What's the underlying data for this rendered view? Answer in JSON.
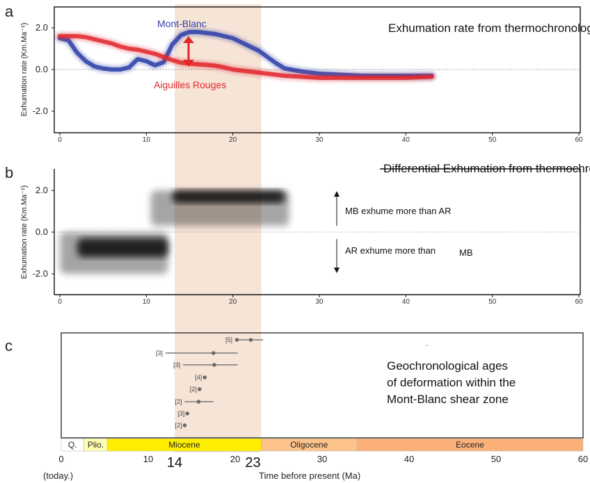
{
  "chart_data": [
    {
      "panel": "a",
      "type": "line",
      "title": "Exhumation rate from thermochronology",
      "ylabel": "Exhumation rate (Km.Ma⁻¹)",
      "ylim": [
        -3,
        3
      ],
      "xlim": [
        -0.5,
        60
      ],
      "yticks": [
        "2.0",
        "0.0",
        "-2.0"
      ],
      "xticks": [
        "0",
        "10",
        "20",
        "30",
        "40",
        "50",
        "60"
      ],
      "series": [
        {
          "name": "Mont-Blanc",
          "color": "#2f3fa8",
          "x": [
            0,
            1,
            2,
            3,
            4,
            5,
            6,
            7,
            8,
            9,
            10,
            11,
            12,
            13,
            14,
            15,
            16,
            17,
            18,
            19,
            20,
            21,
            22,
            23,
            24,
            25,
            26,
            28,
            30,
            35,
            40,
            43
          ],
          "y": [
            1.5,
            1.4,
            0.8,
            0.4,
            0.15,
            0.05,
            0.0,
            0.0,
            0.1,
            0.5,
            0.4,
            0.2,
            0.35,
            1.2,
            1.65,
            1.8,
            1.8,
            1.75,
            1.7,
            1.6,
            1.5,
            1.3,
            1.1,
            0.9,
            0.6,
            0.3,
            0.05,
            -0.1,
            -0.2,
            -0.3,
            -0.3,
            -0.3
          ]
        },
        {
          "name": "Aiguilles Rouges",
          "color": "#e0282e",
          "x": [
            0,
            2,
            3,
            4,
            5,
            6,
            7,
            8,
            9,
            10,
            11,
            12,
            13,
            14,
            15,
            16,
            17,
            18,
            19,
            20,
            22,
            24,
            26,
            28,
            30,
            35,
            40,
            43
          ],
          "y": [
            1.6,
            1.6,
            1.55,
            1.45,
            1.35,
            1.25,
            1.1,
            1.0,
            0.95,
            0.85,
            0.75,
            0.6,
            0.45,
            0.33,
            0.28,
            0.25,
            0.22,
            0.18,
            0.1,
            0.0,
            -0.1,
            -0.2,
            -0.3,
            -0.35,
            -0.4,
            -0.4,
            -0.4,
            -0.35
          ]
        }
      ]
    },
    {
      "panel": "b",
      "type": "heatmap",
      "title": "Differential Exhumation from thermochronology",
      "ylabel": "Exhumation rate (Km.Ma⁻¹)",
      "ylim": [
        -3,
        3
      ],
      "xlim": [
        -0.5,
        60
      ],
      "yticks": [
        "2.0",
        "0.0",
        "-2.0"
      ],
      "xticks": [
        "0",
        "10",
        "20",
        "30",
        "40",
        "50",
        "60"
      ],
      "bands": [
        {
          "x": [
            0,
            12.5
          ],
          "y": [
            -2.0,
            0.0
          ],
          "density": 0.35
        },
        {
          "x": [
            2.0,
            12.5
          ],
          "y": [
            -1.2,
            -0.3
          ],
          "density": 0.8
        },
        {
          "x": [
            10.5,
            26.5
          ],
          "y": [
            0.3,
            2.0
          ],
          "density": 0.35
        },
        {
          "x": [
            13.0,
            26.0
          ],
          "y": [
            1.4,
            2.0
          ],
          "density": 0.8
        }
      ],
      "annotations": [
        "MB exhume more than AR",
        "AR exhume more than",
        "MB"
      ]
    },
    {
      "panel": "c",
      "type": "scatter",
      "title": "Geochronological ages of deformation within the Mont-Blanc shear zone",
      "xlabel": "Time before present (Ma)",
      "xticks": [
        "0",
        "10",
        "20",
        "30",
        "40",
        "50",
        "60"
      ],
      "xlim": [
        0,
        60
      ],
      "x0_note": "(today.)",
      "points": [
        {
          "ref": "[5]",
          "ages": [
            20.2,
            21.8
          ],
          "xerr": [
            20.0,
            23.2
          ]
        },
        {
          "ref": "[3]",
          "ages": [
            17.5
          ],
          "xerr": [
            12.0,
            20.3
          ]
        },
        {
          "ref": "[3]",
          "ages": [
            17.6
          ],
          "xerr": [
            14.0,
            20.3
          ]
        },
        {
          "ref": "[4]",
          "ages": [
            16.5
          ],
          "xerr": null
        },
        {
          "ref": "[2]",
          "ages": [
            15.9
          ],
          "xerr": null
        },
        {
          "ref": "[2]",
          "ages": [
            15.8
          ],
          "xerr": [
            14.2,
            17.5
          ]
        },
        {
          "ref": "[3]",
          "ages": [
            14.5
          ],
          "xerr": null
        },
        {
          "ref": "[2]",
          "ages": [
            14.2
          ],
          "xerr": null
        }
      ],
      "epochs": [
        {
          "name": "Q.",
          "from": 0,
          "to": 2.6,
          "color": "#ffffff"
        },
        {
          "name": "Plio.",
          "from": 2.6,
          "to": 5.3,
          "color": "#ffffb3"
        },
        {
          "name": "Miocene",
          "from": 5.3,
          "to": 23,
          "color": "#ffee00"
        },
        {
          "name": "Oligocene",
          "from": 23,
          "to": 34,
          "color": "#fdc38a"
        },
        {
          "name": "Eocene",
          "from": 34,
          "to": 60,
          "color": "#fbb07a"
        }
      ]
    }
  ],
  "highlight": {
    "from": 14,
    "to": 23,
    "labels": [
      "14",
      "23"
    ],
    "color": "#f5dfd0"
  },
  "panel_letters": [
    "a",
    "b",
    "c"
  ]
}
